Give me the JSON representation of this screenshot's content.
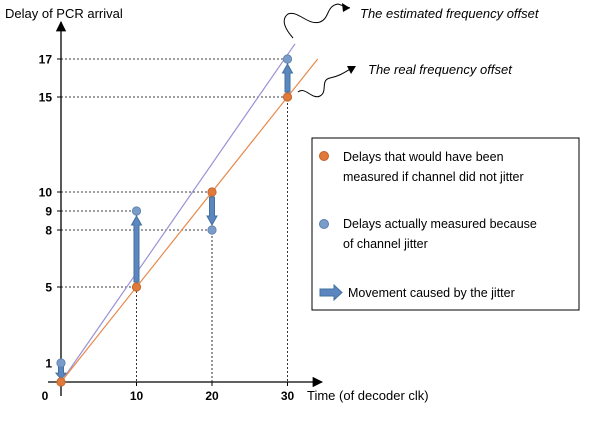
{
  "chart_data": {
    "type": "scatter",
    "title": "",
    "xlabel": "Time (of decoder clk)",
    "ylabel": "Delay of PCR arrival",
    "x_ticks": [
      0,
      10,
      20,
      30
    ],
    "y_ticks": [
      1,
      5,
      8,
      9,
      10,
      15,
      17
    ],
    "x_tick_labels": [
      "0",
      "10",
      "20",
      "30"
    ],
    "y_tick_labels": [
      "1",
      "5",
      "8",
      "9",
      "10",
      "15",
      "17"
    ],
    "xlim": [
      0,
      33
    ],
    "ylim": [
      0,
      19
    ],
    "grid": false,
    "legend_position": "right",
    "series": [
      {
        "name": "Delays that would have been measured if channel did not jitter",
        "color": "#e07a3a",
        "points": [
          {
            "x": 0,
            "y": 0
          },
          {
            "x": 10,
            "y": 5
          },
          {
            "x": 20,
            "y": 10
          },
          {
            "x": 30,
            "y": 15
          }
        ]
      },
      {
        "name": "Delays actually measured because of channel jitter",
        "color": "#7a9cc9",
        "points": [
          {
            "x": 0,
            "y": 1
          },
          {
            "x": 10,
            "y": 9
          },
          {
            "x": 20,
            "y": 8
          },
          {
            "x": 30,
            "y": 17
          }
        ]
      }
    ],
    "movement_label": "Movement caused by the jitter",
    "movements": [
      {
        "x": 0,
        "from": 1,
        "to": 0
      },
      {
        "x": 10,
        "from": 5,
        "to": 9
      },
      {
        "x": 20,
        "from": 10,
        "to": 8
      },
      {
        "x": 30,
        "from": 15,
        "to": 17
      }
    ],
    "lines": [
      {
        "name": "The estimated frequency offset",
        "color": "#9c91d6",
        "x1": 0,
        "y1": 0,
        "x2": 31,
        "y2": 17.8
      },
      {
        "name": "The real frequency offset",
        "color": "#e68a4a",
        "x1": 0,
        "y1": 0,
        "x2": 34,
        "y2": 17
      }
    ],
    "arrow_color": "#5b86c0",
    "arrow_outline": "#41719c"
  }
}
